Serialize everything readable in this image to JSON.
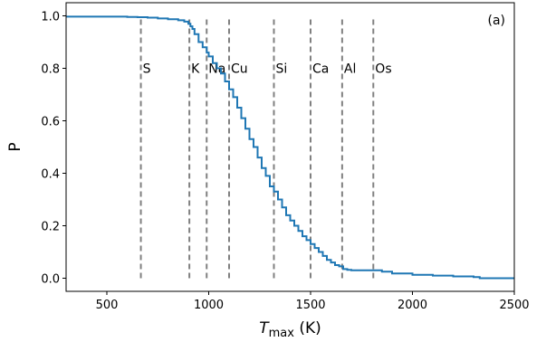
{
  "chart_data": {
    "type": "line",
    "title": "",
    "panel_label": "(a)",
    "xlabel": {
      "main": "T",
      "sub": "max",
      "unit": " (K)"
    },
    "ylabel": "P",
    "xlim": [
      300,
      2500
    ],
    "ylim": [
      -0.05,
      1.05
    ],
    "xticks": [
      500,
      1000,
      1500,
      2000,
      2500
    ],
    "xtick_labels": [
      "500",
      "1000",
      "1500",
      "2000",
      "2500"
    ],
    "yticks": [
      0.0,
      0.2,
      0.4,
      0.6,
      0.8,
      1.0
    ],
    "ytick_labels": [
      "0.0",
      "0.2",
      "0.4",
      "0.6",
      "0.8",
      "1.0"
    ],
    "line_color": "#1f77b4",
    "marker_color": "#808080",
    "series": [
      {
        "x": [
          300,
          500,
          600,
          650,
          700,
          750,
          800,
          850,
          880,
          900,
          910,
          920,
          930,
          950,
          970,
          990,
          1000,
          1020,
          1040,
          1060,
          1080,
          1100,
          1120,
          1140,
          1160,
          1180,
          1200,
          1220,
          1240,
          1260,
          1280,
          1300,
          1320,
          1340,
          1360,
          1380,
          1400,
          1420,
          1440,
          1460,
          1480,
          1500,
          1520,
          1540,
          1560,
          1580,
          1600,
          1620,
          1640,
          1660,
          1680,
          1700,
          1750,
          1800,
          1850,
          1900,
          2000,
          2100,
          2200,
          2300,
          2330,
          2400,
          2500
        ],
        "y": [
          0.997,
          0.997,
          0.996,
          0.995,
          0.993,
          0.99,
          0.987,
          0.983,
          0.978,
          0.97,
          0.96,
          0.95,
          0.93,
          0.9,
          0.88,
          0.86,
          0.845,
          0.82,
          0.8,
          0.78,
          0.75,
          0.72,
          0.69,
          0.65,
          0.61,
          0.57,
          0.53,
          0.5,
          0.46,
          0.42,
          0.39,
          0.35,
          0.33,
          0.3,
          0.27,
          0.24,
          0.22,
          0.2,
          0.18,
          0.16,
          0.145,
          0.13,
          0.115,
          0.1,
          0.085,
          0.07,
          0.06,
          0.05,
          0.045,
          0.035,
          0.032,
          0.03,
          0.03,
          0.03,
          0.025,
          0.018,
          0.013,
          0.01,
          0.007,
          0.004,
          0.0,
          0.0,
          0.0
        ]
      }
    ],
    "markers": [
      {
        "label": "S",
        "x": 667
      },
      {
        "label": "K",
        "x": 905
      },
      {
        "label": "Na",
        "x": 990
      },
      {
        "label": "Cu",
        "x": 1100
      },
      {
        "label": "Si",
        "x": 1320
      },
      {
        "label": "Ca",
        "x": 1500
      },
      {
        "label": "Al",
        "x": 1655
      },
      {
        "label": "Os",
        "x": 1808
      }
    ],
    "marker_label_y": 0.8,
    "marker_line_range": [
      0.0,
      1.0
    ]
  }
}
